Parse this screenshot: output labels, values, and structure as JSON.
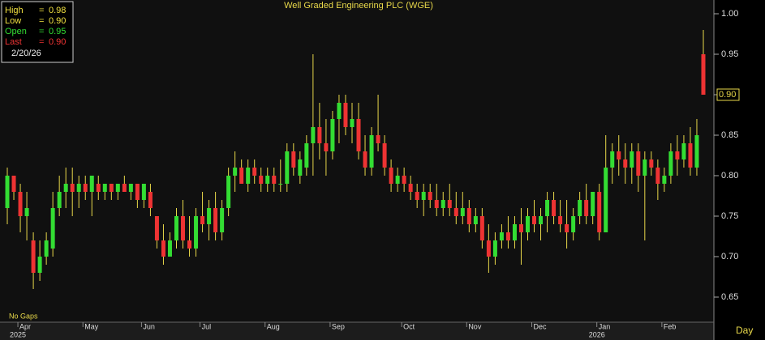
{
  "chart_data": {
    "type": "candlestick",
    "title": "Well Graded Engineering PLC (WGE)",
    "categories": [
      null,
      null,
      "Apr",
      null,
      null,
      null,
      null,
      null,
      null,
      null,
      null,
      null,
      "May",
      null,
      null,
      null,
      null,
      null,
      null,
      null,
      null,
      "Jun",
      null,
      null,
      null,
      null,
      null,
      null,
      null,
      null,
      "Jul",
      null,
      null,
      null,
      null,
      null,
      null,
      null,
      null,
      null,
      "Aug",
      null,
      null,
      null,
      null,
      null,
      null,
      null,
      null,
      null,
      "Sep",
      null,
      null,
      null,
      null,
      null,
      null,
      null,
      null,
      null,
      null,
      "Oct",
      null,
      null,
      null,
      null,
      null,
      null,
      null,
      null,
      null,
      "Nov",
      null,
      null,
      null,
      null,
      null,
      null,
      null,
      null,
      null,
      "Dec",
      null,
      null,
      null,
      null,
      null,
      null,
      null,
      null,
      null,
      "Jan",
      null,
      null,
      null,
      null,
      null,
      null,
      null,
      null,
      null,
      "Feb",
      null,
      null,
      null,
      null,
      null,
      null
    ],
    "year_labels": [
      "2025",
      "2026"
    ],
    "open": [
      0.76,
      0.8,
      0.78,
      0.75,
      0.72,
      0.68,
      0.7,
      0.71,
      0.76,
      0.78,
      0.79,
      0.78,
      0.79,
      0.78,
      0.79,
      0.78,
      0.79,
      0.78,
      0.79,
      0.78,
      0.79,
      0.77,
      0.78,
      0.75,
      0.72,
      0.7,
      0.72,
      0.75,
      0.72,
      0.71,
      0.75,
      0.74,
      0.76,
      0.73,
      0.76,
      0.8,
      0.81,
      0.79,
      0.81,
      0.8,
      0.79,
      0.8,
      0.79,
      0.79,
      0.83,
      0.8,
      0.81,
      0.84,
      0.86,
      0.84,
      0.83,
      0.87,
      0.89,
      0.86,
      0.87,
      0.83,
      0.81,
      0.85,
      0.84,
      0.81,
      0.79,
      0.8,
      0.79,
      0.78,
      0.77,
      0.78,
      0.77,
      0.76,
      0.77,
      0.76,
      0.75,
      0.76,
      0.74,
      0.75,
      0.72,
      0.7,
      0.72,
      0.73,
      0.72,
      0.74,
      0.73,
      0.75,
      0.74,
      0.75,
      0.77,
      0.75,
      0.74,
      0.73,
      0.75,
      0.77,
      0.75,
      0.78,
      0.73,
      0.81,
      0.83,
      0.82,
      0.81,
      0.83,
      0.8,
      0.82,
      0.81,
      0.79,
      0.8,
      0.83,
      0.82,
      0.84,
      0.81,
      0.95
    ],
    "high": [
      0.81,
      0.8,
      0.79,
      0.78,
      0.73,
      0.72,
      0.73,
      0.78,
      0.8,
      0.81,
      0.81,
      0.8,
      0.8,
      0.8,
      0.8,
      0.79,
      0.79,
      0.79,
      0.8,
      0.79,
      0.79,
      0.79,
      0.79,
      0.75,
      0.74,
      0.73,
      0.76,
      0.77,
      0.75,
      0.76,
      0.78,
      0.77,
      0.78,
      0.77,
      0.81,
      0.83,
      0.82,
      0.82,
      0.82,
      0.81,
      0.81,
      0.81,
      0.82,
      0.84,
      0.84,
      0.83,
      0.85,
      0.95,
      0.89,
      0.87,
      0.88,
      0.9,
      0.9,
      0.89,
      0.89,
      0.85,
      0.86,
      0.9,
      0.85,
      0.82,
      0.81,
      0.81,
      0.8,
      0.79,
      0.79,
      0.79,
      0.79,
      0.78,
      0.79,
      0.78,
      0.78,
      0.77,
      0.76,
      0.76,
      0.74,
      0.73,
      0.74,
      0.75,
      0.75,
      0.76,
      0.76,
      0.77,
      0.76,
      0.78,
      0.78,
      0.77,
      0.77,
      0.76,
      0.78,
      0.79,
      0.78,
      0.79,
      0.85,
      0.84,
      0.85,
      0.84,
      0.84,
      0.84,
      0.83,
      0.83,
      0.82,
      0.81,
      0.84,
      0.85,
      0.85,
      0.86,
      0.87,
      0.98
    ],
    "low": [
      0.74,
      0.77,
      0.73,
      0.72,
      0.66,
      0.67,
      0.69,
      0.7,
      0.75,
      0.76,
      0.75,
      0.76,
      0.77,
      0.75,
      0.77,
      0.77,
      0.77,
      0.77,
      0.78,
      0.77,
      0.76,
      0.76,
      0.75,
      0.71,
      0.69,
      0.7,
      0.71,
      0.71,
      0.7,
      0.7,
      0.73,
      0.72,
      0.72,
      0.72,
      0.75,
      0.78,
      0.79,
      0.78,
      0.79,
      0.78,
      0.78,
      0.78,
      0.78,
      0.78,
      0.8,
      0.79,
      0.8,
      0.8,
      0.82,
      0.8,
      0.82,
      0.84,
      0.85,
      0.84,
      0.82,
      0.8,
      0.8,
      0.83,
      0.8,
      0.78,
      0.78,
      0.78,
      0.77,
      0.76,
      0.75,
      0.76,
      0.75,
      0.75,
      0.75,
      0.74,
      0.74,
      0.73,
      0.73,
      0.71,
      0.68,
      0.69,
      0.71,
      0.71,
      0.71,
      0.69,
      0.72,
      0.73,
      0.72,
      0.73,
      0.74,
      0.73,
      0.71,
      0.72,
      0.74,
      0.74,
      0.74,
      0.72,
      0.73,
      0.79,
      0.8,
      0.79,
      0.79,
      0.78,
      0.72,
      0.8,
      0.77,
      0.78,
      0.79,
      0.8,
      0.81,
      0.8,
      0.8,
      0.9
    ],
    "close": [
      0.8,
      0.78,
      0.75,
      0.76,
      0.68,
      0.7,
      0.72,
      0.76,
      0.78,
      0.79,
      0.78,
      0.79,
      0.78,
      0.8,
      0.78,
      0.79,
      0.78,
      0.79,
      0.78,
      0.79,
      0.77,
      0.79,
      0.76,
      0.72,
      0.7,
      0.72,
      0.75,
      0.72,
      0.71,
      0.75,
      0.74,
      0.76,
      0.73,
      0.76,
      0.8,
      0.81,
      0.79,
      0.81,
      0.8,
      0.79,
      0.8,
      0.79,
      0.79,
      0.83,
      0.81,
      0.82,
      0.84,
      0.86,
      0.84,
      0.83,
      0.87,
      0.89,
      0.86,
      0.87,
      0.83,
      0.81,
      0.85,
      0.84,
      0.81,
      0.79,
      0.8,
      0.79,
      0.78,
      0.77,
      0.78,
      0.77,
      0.76,
      0.77,
      0.76,
      0.75,
      0.76,
      0.74,
      0.75,
      0.72,
      0.7,
      0.72,
      0.73,
      0.72,
      0.74,
      0.73,
      0.75,
      0.74,
      0.75,
      0.77,
      0.75,
      0.74,
      0.73,
      0.75,
      0.77,
      0.75,
      0.78,
      0.73,
      0.81,
      0.83,
      0.82,
      0.81,
      0.83,
      0.8,
      0.82,
      0.81,
      0.79,
      0.8,
      0.83,
      0.82,
      0.84,
      0.81,
      0.85,
      0.9
    ],
    "up_color": "#33dd33",
    "down_color": "#ee3333",
    "wick_color": "#e8d84a",
    "ylim": [
      0.619,
      1.017
    ],
    "yticks": [
      {
        "value": 1.0,
        "label": "1.00"
      },
      {
        "value": 0.95,
        "label": "0.95"
      },
      {
        "value": 0.9,
        "label": "0.90"
      },
      {
        "value": 0.85,
        "label": "0.85"
      },
      {
        "value": 0.8,
        "label": "0.80"
      },
      {
        "value": 0.75,
        "label": "0.75"
      },
      {
        "value": 0.7,
        "label": "0.70"
      },
      {
        "value": 0.65,
        "label": "0.65"
      }
    ],
    "last_price": {
      "value": 0.9,
      "label": "0.90"
    },
    "note": "No Gaps",
    "period": "Day",
    "info": {
      "separator": "=",
      "date": "2/20/26",
      "rows": [
        {
          "name": "High",
          "value": "0.98",
          "color": "#f0e040"
        },
        {
          "name": "Low",
          "value": "0.90",
          "color": "#f0e040"
        },
        {
          "name": "Open",
          "value": "0.95",
          "color": "#33dd33"
        },
        {
          "name": "Last",
          "value": "0.90",
          "color": "#ee3333"
        }
      ]
    }
  }
}
